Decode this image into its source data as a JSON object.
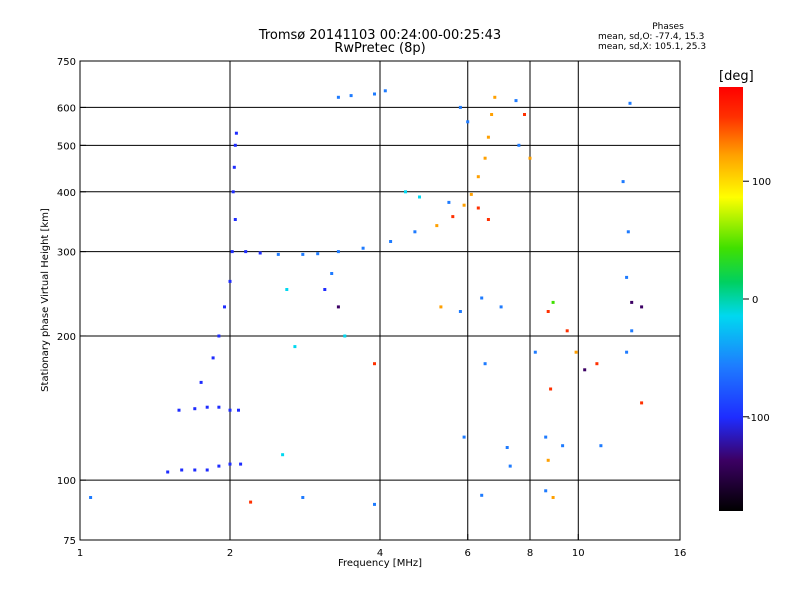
{
  "header": {
    "title_line1": "Tromsø 20141103 00:24:00-00:25:43",
    "title_line2": "RwPretec (8p)"
  },
  "phase_stats": {
    "title": "Phases",
    "line_o": "mean, sd,O: -77.4, 15.3",
    "line_x": "mean, sd,X: 105.1, 25.3"
  },
  "colorbar": {
    "unit_label": "[deg]",
    "ticks": [
      100,
      0,
      -100
    ],
    "range": [
      -180,
      180
    ]
  },
  "chart_data": {
    "type": "scatter",
    "title": "Tromsø 20141103 00:24:00-00:25:43",
    "subtitle": "RwPretec (8p)",
    "xlabel": "Frequency [MHz]",
    "ylabel": "Stationary phase Virtual Height [km]",
    "xscale": "log",
    "yscale": "log",
    "xlim": [
      1,
      16
    ],
    "ylim": [
      75,
      750
    ],
    "xticks": [
      1,
      2,
      4,
      6,
      8,
      10,
      16
    ],
    "yticks": [
      75,
      100,
      200,
      300,
      400,
      500,
      600,
      750
    ],
    "x_gridlines": [
      2,
      4,
      6,
      8,
      10
    ],
    "y_gridlines": [
      100,
      200,
      300,
      400,
      500,
      600
    ],
    "grid": true,
    "color_scale": [
      "#000000",
      "#3c0064",
      "#1e2cff",
      "#1e7bff",
      "#00d8f0",
      "#00d060",
      "#40e000",
      "#ffff00",
      "#ffa000",
      "#ff3000",
      "#ff0000"
    ],
    "points": [
      {
        "x": 1.05,
        "y": 92,
        "phase": -90
      },
      {
        "x": 1.5,
        "y": 104,
        "phase": -95
      },
      {
        "x": 1.6,
        "y": 105,
        "phase": -95
      },
      {
        "x": 1.7,
        "y": 105,
        "phase": -95
      },
      {
        "x": 1.8,
        "y": 105,
        "phase": -95
      },
      {
        "x": 1.9,
        "y": 107,
        "phase": -95
      },
      {
        "x": 2.0,
        "y": 108,
        "phase": -95
      },
      {
        "x": 2.1,
        "y": 108,
        "phase": -95
      },
      {
        "x": 2.55,
        "y": 113,
        "phase": -20
      },
      {
        "x": 1.58,
        "y": 140,
        "phase": -95
      },
      {
        "x": 1.7,
        "y": 141,
        "phase": -95
      },
      {
        "x": 1.8,
        "y": 142,
        "phase": -95
      },
      {
        "x": 1.9,
        "y": 142,
        "phase": -95
      },
      {
        "x": 2.0,
        "y": 140,
        "phase": -95
      },
      {
        "x": 2.08,
        "y": 140,
        "phase": -95
      },
      {
        "x": 1.75,
        "y": 160,
        "phase": -95
      },
      {
        "x": 1.85,
        "y": 180,
        "phase": -95
      },
      {
        "x": 1.9,
        "y": 200,
        "phase": -95
      },
      {
        "x": 1.95,
        "y": 230,
        "phase": -95
      },
      {
        "x": 2.0,
        "y": 260,
        "phase": -95
      },
      {
        "x": 2.02,
        "y": 300,
        "phase": -95
      },
      {
        "x": 2.05,
        "y": 350,
        "phase": -95
      },
      {
        "x": 2.03,
        "y": 400,
        "phase": -95
      },
      {
        "x": 2.04,
        "y": 450,
        "phase": -95
      },
      {
        "x": 2.05,
        "y": 500,
        "phase": -95
      },
      {
        "x": 2.06,
        "y": 530,
        "phase": -95
      },
      {
        "x": 2.15,
        "y": 300,
        "phase": -95
      },
      {
        "x": 2.3,
        "y": 298,
        "phase": -95
      },
      {
        "x": 2.5,
        "y": 296,
        "phase": -90
      },
      {
        "x": 2.8,
        "y": 296,
        "phase": -85
      },
      {
        "x": 3.0,
        "y": 297,
        "phase": -90
      },
      {
        "x": 3.3,
        "y": 300,
        "phase": -90
      },
      {
        "x": 3.7,
        "y": 305,
        "phase": -90
      },
      {
        "x": 4.2,
        "y": 315,
        "phase": -85
      },
      {
        "x": 4.7,
        "y": 330,
        "phase": -80
      },
      {
        "x": 5.2,
        "y": 340,
        "phase": 120
      },
      {
        "x": 5.6,
        "y": 355,
        "phase": 130
      },
      {
        "x": 5.9,
        "y": 375,
        "phase": 120
      },
      {
        "x": 6.1,
        "y": 395,
        "phase": 110
      },
      {
        "x": 6.3,
        "y": 430,
        "phase": 100
      },
      {
        "x": 6.5,
        "y": 470,
        "phase": 120
      },
      {
        "x": 6.6,
        "y": 520,
        "phase": 110
      },
      {
        "x": 6.7,
        "y": 580,
        "phase": 100
      },
      {
        "x": 6.8,
        "y": 630,
        "phase": 90
      },
      {
        "x": 3.1,
        "y": 250,
        "phase": -125
      },
      {
        "x": 3.2,
        "y": 270,
        "phase": -90
      },
      {
        "x": 3.3,
        "y": 230,
        "phase": -130
      },
      {
        "x": 3.4,
        "y": 200,
        "phase": -50
      },
      {
        "x": 2.6,
        "y": 250,
        "phase": -40
      },
      {
        "x": 2.7,
        "y": 190,
        "phase": -40
      },
      {
        "x": 3.3,
        "y": 630,
        "phase": -90
      },
      {
        "x": 3.5,
        "y": 635,
        "phase": -90
      },
      {
        "x": 3.9,
        "y": 640,
        "phase": -90
      },
      {
        "x": 4.1,
        "y": 650,
        "phase": -90
      },
      {
        "x": 4.5,
        "y": 400,
        "phase": -50
      },
      {
        "x": 4.8,
        "y": 390,
        "phase": -40
      },
      {
        "x": 5.5,
        "y": 380,
        "phase": -60
      },
      {
        "x": 5.8,
        "y": 600,
        "phase": -90
      },
      {
        "x": 6.0,
        "y": 560,
        "phase": -90
      },
      {
        "x": 7.5,
        "y": 620,
        "phase": -80
      },
      {
        "x": 7.8,
        "y": 580,
        "phase": 130
      },
      {
        "x": 8.0,
        "y": 470,
        "phase": 100
      },
      {
        "x": 7.6,
        "y": 500,
        "phase": -80
      },
      {
        "x": 5.3,
        "y": 230,
        "phase": 100
      },
      {
        "x": 5.8,
        "y": 225,
        "phase": -90
      },
      {
        "x": 6.4,
        "y": 240,
        "phase": -90
      },
      {
        "x": 7.0,
        "y": 230,
        "phase": -60
      },
      {
        "x": 6.3,
        "y": 370,
        "phase": 150
      },
      {
        "x": 6.6,
        "y": 350,
        "phase": 150
      },
      {
        "x": 8.7,
        "y": 225,
        "phase": 150
      },
      {
        "x": 8.9,
        "y": 235,
        "phase": 20
      },
      {
        "x": 9.5,
        "y": 205,
        "phase": 150
      },
      {
        "x": 9.9,
        "y": 185,
        "phase": 120
      },
      {
        "x": 6.5,
        "y": 175,
        "phase": -90
      },
      {
        "x": 8.2,
        "y": 185,
        "phase": -60
      },
      {
        "x": 8.8,
        "y": 155,
        "phase": 150
      },
      {
        "x": 10.3,
        "y": 170,
        "phase": -160
      },
      {
        "x": 10.9,
        "y": 175,
        "phase": 150
      },
      {
        "x": 12.8,
        "y": 235,
        "phase": -130
      },
      {
        "x": 13.4,
        "y": 230,
        "phase": -140
      },
      {
        "x": 12.5,
        "y": 265,
        "phase": -90
      },
      {
        "x": 12.6,
        "y": 330,
        "phase": -90
      },
      {
        "x": 12.3,
        "y": 420,
        "phase": -90
      },
      {
        "x": 12.7,
        "y": 612,
        "phase": -90
      },
      {
        "x": 9.3,
        "y": 118,
        "phase": -90
      },
      {
        "x": 8.6,
        "y": 123,
        "phase": -90
      },
      {
        "x": 7.2,
        "y": 117,
        "phase": -90
      },
      {
        "x": 5.9,
        "y": 123,
        "phase": -90
      },
      {
        "x": 3.9,
        "y": 175,
        "phase": 130
      },
      {
        "x": 8.7,
        "y": 110,
        "phase": 100
      },
      {
        "x": 8.6,
        "y": 95,
        "phase": -90
      },
      {
        "x": 8.9,
        "y": 92,
        "phase": 100
      },
      {
        "x": 7.3,
        "y": 107,
        "phase": -90
      },
      {
        "x": 6.4,
        "y": 93,
        "phase": -90
      },
      {
        "x": 2.8,
        "y": 92,
        "phase": -90
      },
      {
        "x": 2.2,
        "y": 90,
        "phase": 130
      },
      {
        "x": 3.9,
        "y": 89,
        "phase": -90
      },
      {
        "x": 11.1,
        "y": 118,
        "phase": -90
      },
      {
        "x": 13.4,
        "y": 145,
        "phase": 130
      },
      {
        "x": 12.5,
        "y": 185,
        "phase": -90
      },
      {
        "x": 12.8,
        "y": 205,
        "phase": -90
      }
    ]
  }
}
